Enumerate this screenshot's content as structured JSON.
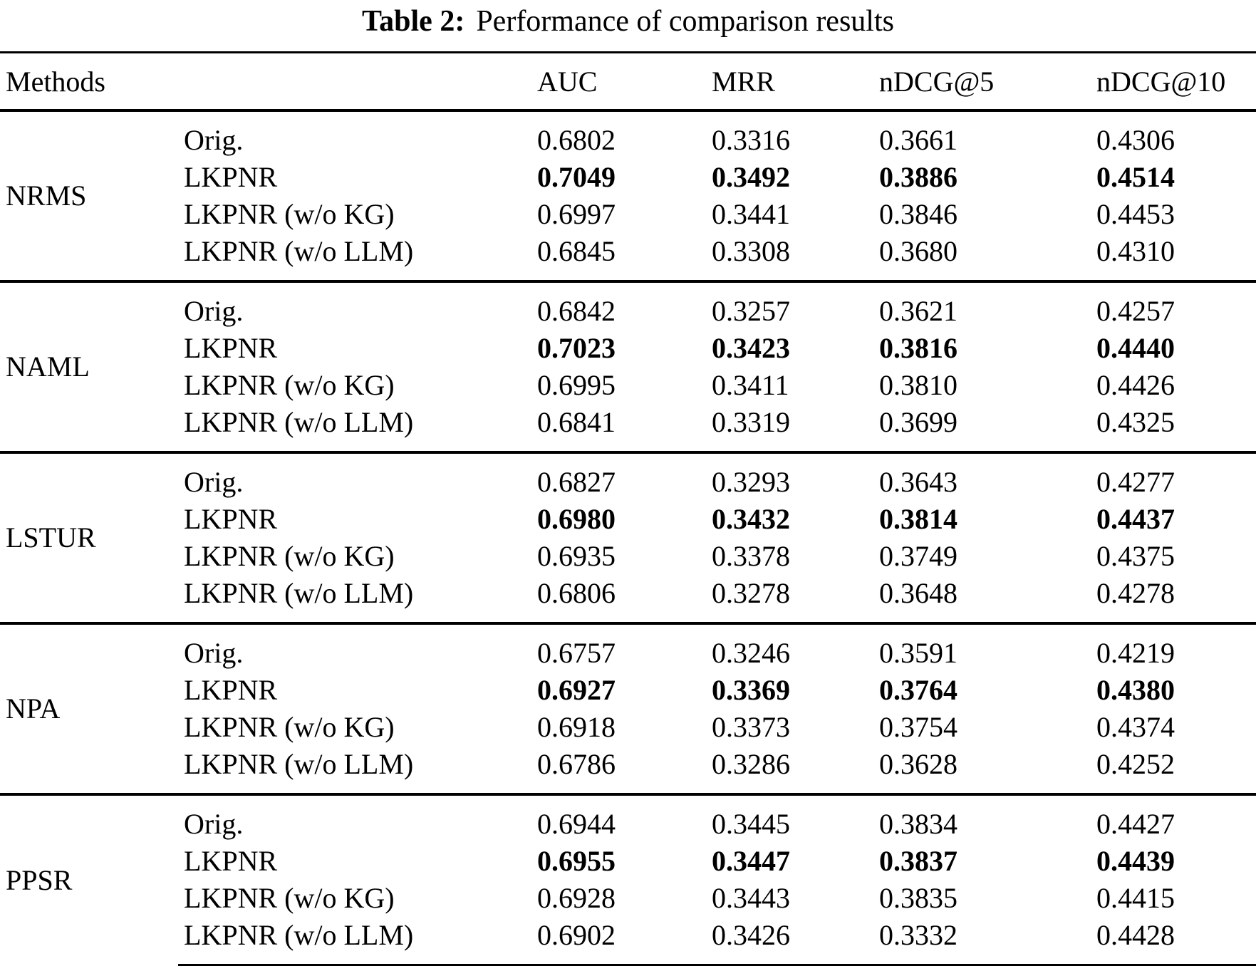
{
  "caption": {
    "label": "Table 2:",
    "text": "Performance of comparison results"
  },
  "table": {
    "headers": [
      "Methods",
      "AUC",
      "MRR",
      "nDCG@5",
      "nDCG@10"
    ],
    "groups": [
      {
        "method": "NRMS",
        "rows": [
          {
            "variant": "Orig.",
            "bold": false,
            "values": [
              "0.6802",
              "0.3316",
              "0.3661",
              "0.4306"
            ]
          },
          {
            "variant": "LKPNR",
            "bold": true,
            "values": [
              "0.7049",
              "0.3492",
              "0.3886",
              "0.4514"
            ]
          },
          {
            "variant": "LKPNR (w/o KG)",
            "bold": false,
            "values": [
              "0.6997",
              "0.3441",
              "0.3846",
              "0.4453"
            ]
          },
          {
            "variant": "LKPNR (w/o LLM)",
            "bold": false,
            "values": [
              "0.6845",
              "0.3308",
              "0.3680",
              "0.4310"
            ]
          }
        ]
      },
      {
        "method": "NAML",
        "rows": [
          {
            "variant": "Orig.",
            "bold": false,
            "values": [
              "0.6842",
              "0.3257",
              "0.3621",
              "0.4257"
            ]
          },
          {
            "variant": "LKPNR",
            "bold": true,
            "values": [
              "0.7023",
              "0.3423",
              "0.3816",
              "0.4440"
            ]
          },
          {
            "variant": "LKPNR (w/o KG)",
            "bold": false,
            "values": [
              "0.6995",
              "0.3411",
              "0.3810",
              "0.4426"
            ]
          },
          {
            "variant": "LKPNR (w/o LLM)",
            "bold": false,
            "values": [
              "0.6841",
              "0.3319",
              "0.3699",
              "0.4325"
            ]
          }
        ]
      },
      {
        "method": "LSTUR",
        "rows": [
          {
            "variant": "Orig.",
            "bold": false,
            "values": [
              "0.6827",
              "0.3293",
              "0.3643",
              "0.4277"
            ]
          },
          {
            "variant": "LKPNR",
            "bold": true,
            "values": [
              "0.6980",
              "0.3432",
              "0.3814",
              "0.4437"
            ]
          },
          {
            "variant": "LKPNR (w/o KG)",
            "bold": false,
            "values": [
              "0.6935",
              "0.3378",
              "0.3749",
              "0.4375"
            ]
          },
          {
            "variant": "LKPNR (w/o LLM)",
            "bold": false,
            "values": [
              "0.6806",
              "0.3278",
              "0.3648",
              "0.4278"
            ]
          }
        ]
      },
      {
        "method": "NPA",
        "rows": [
          {
            "variant": "Orig.",
            "bold": false,
            "values": [
              "0.6757",
              "0.3246",
              "0.3591",
              "0.4219"
            ]
          },
          {
            "variant": "LKPNR",
            "bold": true,
            "values": [
              "0.6927",
              "0.3369",
              "0.3764",
              "0.4380"
            ]
          },
          {
            "variant": "LKPNR (w/o KG)",
            "bold": false,
            "values": [
              "0.6918",
              "0.3373",
              "0.3754",
              "0.4374"
            ]
          },
          {
            "variant": "LKPNR (w/o LLM)",
            "bold": false,
            "values": [
              "0.6786",
              "0.3286",
              "0.3628",
              "0.4252"
            ]
          }
        ]
      },
      {
        "method": "PPSR",
        "rows": [
          {
            "variant": "Orig.",
            "bold": false,
            "values": [
              "0.6944",
              "0.3445",
              "0.3834",
              "0.4427"
            ]
          },
          {
            "variant": "LKPNR",
            "bold": true,
            "values": [
              "0.6955",
              "0.3447",
              "0.3837",
              "0.4439"
            ]
          },
          {
            "variant": "LKPNR (w/o KG)",
            "bold": false,
            "values": [
              "0.6928",
              "0.3443",
              "0.3835",
              "0.4415"
            ]
          },
          {
            "variant": "LKPNR (w/o LLM)",
            "bold": false,
            "values": [
              "0.6902",
              "0.3426",
              "0.3332",
              "0.4428"
            ]
          }
        ]
      }
    ]
  }
}
